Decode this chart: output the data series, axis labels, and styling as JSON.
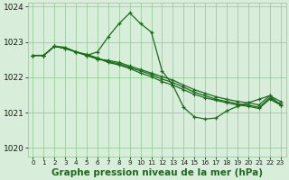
{
  "background_color": "#d8eedb",
  "grid_color": "#8ec98e",
  "line_color": "#1a6b1a",
  "marker_color": "#1a6b1a",
  "xlabel": "Graphe pression niveau de la mer (hPa)",
  "xlabel_fontsize": 7.5,
  "ylim": [
    1019.75,
    1024.1
  ],
  "xlim": [
    -0.5,
    23.5
  ],
  "yticks": [
    1020,
    1021,
    1022,
    1023,
    1024
  ],
  "xticks": [
    0,
    1,
    2,
    3,
    4,
    5,
    6,
    7,
    8,
    9,
    10,
    11,
    12,
    13,
    14,
    15,
    16,
    17,
    18,
    19,
    20,
    21,
    22,
    23
  ],
  "series": [
    [
      1022.62,
      1022.62,
      1022.88,
      1022.85,
      1022.72,
      1022.62,
      1022.72,
      1023.15,
      1023.52,
      1023.82,
      1023.52,
      1023.28,
      1022.18,
      1021.78,
      1021.15,
      1020.88,
      1020.82,
      1020.85,
      1021.05,
      1021.18,
      1021.28,
      1021.38,
      1021.48,
      1021.22
    ],
    [
      1022.62,
      1022.62,
      1022.88,
      1022.82,
      1022.72,
      1022.65,
      1022.55,
      1022.42,
      1022.35,
      1022.25,
      1022.12,
      1022.02,
      1021.88,
      1021.78,
      1021.65,
      1021.52,
      1021.42,
      1021.35,
      1021.28,
      1021.22,
      1021.18,
      1021.12,
      1021.38,
      1021.22
    ],
    [
      1022.62,
      1022.62,
      1022.88,
      1022.82,
      1022.72,
      1022.62,
      1022.52,
      1022.45,
      1022.38,
      1022.28,
      1022.18,
      1022.08,
      1021.95,
      1021.85,
      1021.72,
      1021.58,
      1021.48,
      1021.38,
      1021.32,
      1021.25,
      1021.22,
      1021.15,
      1021.42,
      1021.25
    ],
    [
      1022.62,
      1022.62,
      1022.88,
      1022.82,
      1022.72,
      1022.62,
      1022.52,
      1022.48,
      1022.42,
      1022.32,
      1022.22,
      1022.12,
      1022.02,
      1021.92,
      1021.78,
      1021.65,
      1021.55,
      1021.45,
      1021.38,
      1021.32,
      1021.28,
      1021.22,
      1021.48,
      1021.32
    ]
  ]
}
